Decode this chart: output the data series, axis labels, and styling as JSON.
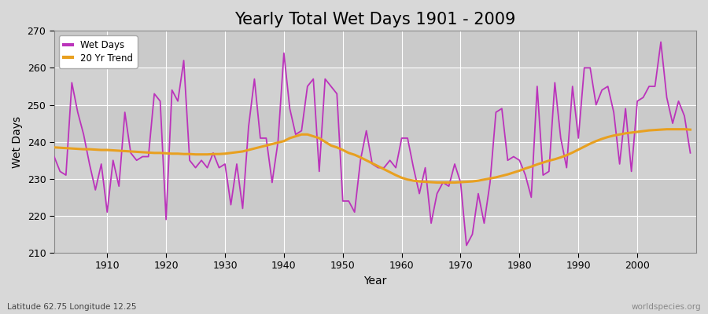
{
  "title": "Yearly Total Wet Days 1901 - 2009",
  "xlabel": "Year",
  "ylabel": "Wet Days",
  "subtitle": "Latitude 62.75 Longitude 12.25",
  "watermark": "worldspecies.org",
  "years": [
    1901,
    1902,
    1903,
    1904,
    1905,
    1906,
    1907,
    1908,
    1909,
    1910,
    1911,
    1912,
    1913,
    1914,
    1915,
    1916,
    1917,
    1918,
    1919,
    1920,
    1921,
    1922,
    1923,
    1924,
    1925,
    1926,
    1927,
    1928,
    1929,
    1930,
    1931,
    1932,
    1933,
    1934,
    1935,
    1936,
    1937,
    1938,
    1939,
    1940,
    1941,
    1942,
    1943,
    1944,
    1945,
    1946,
    1947,
    1948,
    1949,
    1950,
    1951,
    1952,
    1953,
    1954,
    1955,
    1956,
    1957,
    1958,
    1959,
    1960,
    1961,
    1962,
    1963,
    1964,
    1965,
    1966,
    1967,
    1968,
    1969,
    1970,
    1971,
    1972,
    1973,
    1974,
    1975,
    1976,
    1977,
    1978,
    1979,
    1980,
    1981,
    1982,
    1983,
    1984,
    1985,
    1986,
    1987,
    1988,
    1989,
    1990,
    1991,
    1992,
    1993,
    1994,
    1995,
    1996,
    1997,
    1998,
    1999,
    2000,
    2001,
    2002,
    2003,
    2004,
    2005,
    2006,
    2007,
    2008,
    2009
  ],
  "wet_days": [
    236,
    232,
    231,
    256,
    248,
    242,
    234,
    227,
    234,
    221,
    235,
    228,
    248,
    237,
    235,
    236,
    236,
    253,
    251,
    219,
    254,
    251,
    262,
    235,
    233,
    235,
    233,
    237,
    233,
    234,
    223,
    234,
    222,
    244,
    257,
    241,
    241,
    229,
    240,
    264,
    249,
    242,
    243,
    255,
    257,
    232,
    257,
    255,
    253,
    224,
    224,
    221,
    235,
    243,
    234,
    233,
    233,
    235,
    233,
    241,
    241,
    233,
    226,
    233,
    218,
    226,
    229,
    228,
    234,
    229,
    212,
    215,
    226,
    218,
    229,
    248,
    249,
    235,
    236,
    235,
    231,
    225,
    255,
    231,
    232,
    256,
    241,
    233,
    255,
    241,
    260,
    260,
    250,
    254,
    255,
    248,
    234,
    249,
    232,
    251,
    252,
    255,
    255,
    267,
    252,
    245,
    251,
    247,
    237
  ],
  "trend": [
    238.5,
    238.4,
    238.3,
    238.2,
    238.1,
    238.0,
    238.0,
    237.9,
    237.8,
    237.8,
    237.7,
    237.6,
    237.5,
    237.4,
    237.3,
    237.2,
    237.1,
    237.0,
    237.0,
    236.9,
    236.8,
    236.8,
    236.7,
    236.7,
    236.6,
    236.6,
    236.6,
    236.7,
    236.7,
    236.8,
    237.0,
    237.2,
    237.4,
    237.8,
    238.2,
    238.6,
    239.0,
    239.4,
    239.8,
    240.2,
    241.0,
    241.5,
    242.0,
    242.0,
    241.5,
    241.0,
    240.0,
    239.0,
    238.5,
    237.8,
    237.0,
    236.5,
    235.8,
    235.0,
    234.2,
    233.4,
    232.6,
    231.8,
    231.0,
    230.3,
    229.8,
    229.5,
    229.3,
    229.2,
    229.1,
    229.0,
    229.0,
    229.0,
    229.0,
    229.1,
    229.2,
    229.3,
    229.5,
    229.8,
    230.1,
    230.4,
    230.8,
    231.2,
    231.7,
    232.2,
    232.8,
    233.3,
    233.9,
    234.4,
    234.9,
    235.3,
    235.8,
    236.4,
    237.1,
    237.9,
    238.7,
    239.5,
    240.2,
    240.8,
    241.3,
    241.7,
    242.0,
    242.3,
    242.5,
    242.7,
    242.9,
    243.1,
    243.2,
    243.3,
    243.4,
    243.4,
    243.4,
    243.4,
    243.3
  ],
  "wet_days_color": "#BB33BB",
  "trend_color": "#E8A020",
  "background_color": "#D8D8D8",
  "plot_bg_color": "#D8D8D8",
  "grid_color": "#FFFFFF",
  "ylim": [
    210,
    270
  ],
  "yticks": [
    210,
    220,
    230,
    240,
    250,
    260,
    270
  ],
  "xticks": [
    1910,
    1920,
    1930,
    1940,
    1950,
    1960,
    1970,
    1980,
    1990,
    2000
  ],
  "title_fontsize": 15,
  "label_fontsize": 10,
  "tick_fontsize": 9,
  "subtitle_color": "#444444",
  "watermark_color": "#888888"
}
